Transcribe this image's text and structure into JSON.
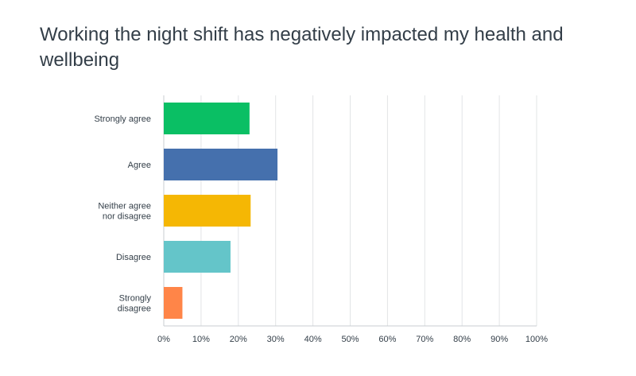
{
  "chart_data": {
    "type": "bar",
    "orientation": "horizontal",
    "title": "Working the night shift has negatively impacted my health and wellbeing",
    "categories": [
      "Strongly agree",
      "Agree",
      "Neither agree nor disagree",
      "Disagree",
      "Strongly disagree"
    ],
    "category_lines": [
      [
        "Strongly agree"
      ],
      [
        "Agree"
      ],
      [
        "Neither agree",
        "nor disagree"
      ],
      [
        "Disagree"
      ],
      [
        "Strongly",
        "disagree"
      ]
    ],
    "values": [
      23,
      30.5,
      23.3,
      17.9,
      5
    ],
    "colors": [
      "#0abf64",
      "#4570ad",
      "#f5b704",
      "#64c5c9",
      "#ff8548"
    ],
    "xlim": [
      0,
      100
    ],
    "xticks": [
      "0%",
      "10%",
      "20%",
      "30%",
      "40%",
      "50%",
      "60%",
      "70%",
      "80%",
      "90%",
      "100%"
    ],
    "grid": true
  }
}
